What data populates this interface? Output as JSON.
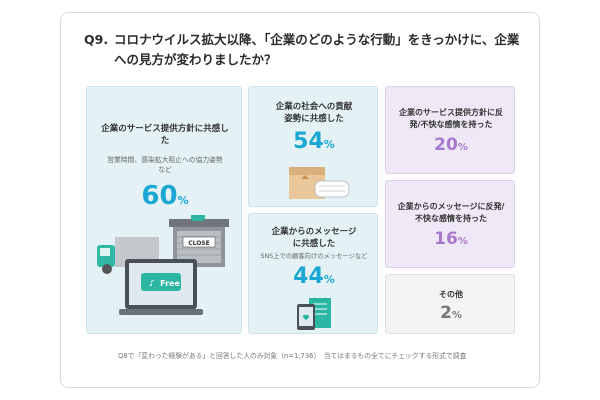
{
  "question": {
    "number": "Q9.",
    "text": "コロナウイルス拡大以降、「企業のどのような行動」をきっかけに、企業への見方が変わりましたか？"
  },
  "chart_data": {
    "type": "table",
    "unit": "%",
    "items": [
      {
        "label": "企業のサービス提供方針に共感した",
        "sub": "営業時間、感染拡大阻止への協力姿勢など",
        "value": 60,
        "group": "positive"
      },
      {
        "label": "企業の社会への貢献姿勢に共感した",
        "sub": "",
        "value": 54,
        "group": "positive"
      },
      {
        "label": "企業からのメッセージに共感した",
        "sub": "SNS上での顧客向けのメッセージなど",
        "value": 44,
        "group": "positive"
      },
      {
        "label": "企業のサービス提供方針に反発/不快な感情を持った",
        "sub": "",
        "value": 20,
        "group": "negative"
      },
      {
        "label": "企業からのメッセージに反発/不快な感情を持った",
        "sub": "",
        "value": 16,
        "group": "negative"
      },
      {
        "label": "その他",
        "sub": "",
        "value": 2,
        "group": "other"
      }
    ]
  },
  "illustration": {
    "close_sign": "CLOSE",
    "free_sign": "Free"
  },
  "footnote": "Q8で「変わった経験がある」と回答した人のみ対象（n=1,736）　当てはまるもの全てにチェックする形式で調査",
  "colors": {
    "positive_card": "#e4f2f6",
    "negative_card": "#efe8f6",
    "other_card": "#f4f4f4",
    "positive_value": "#1aa7d3",
    "negative_value": "#a779cc"
  }
}
